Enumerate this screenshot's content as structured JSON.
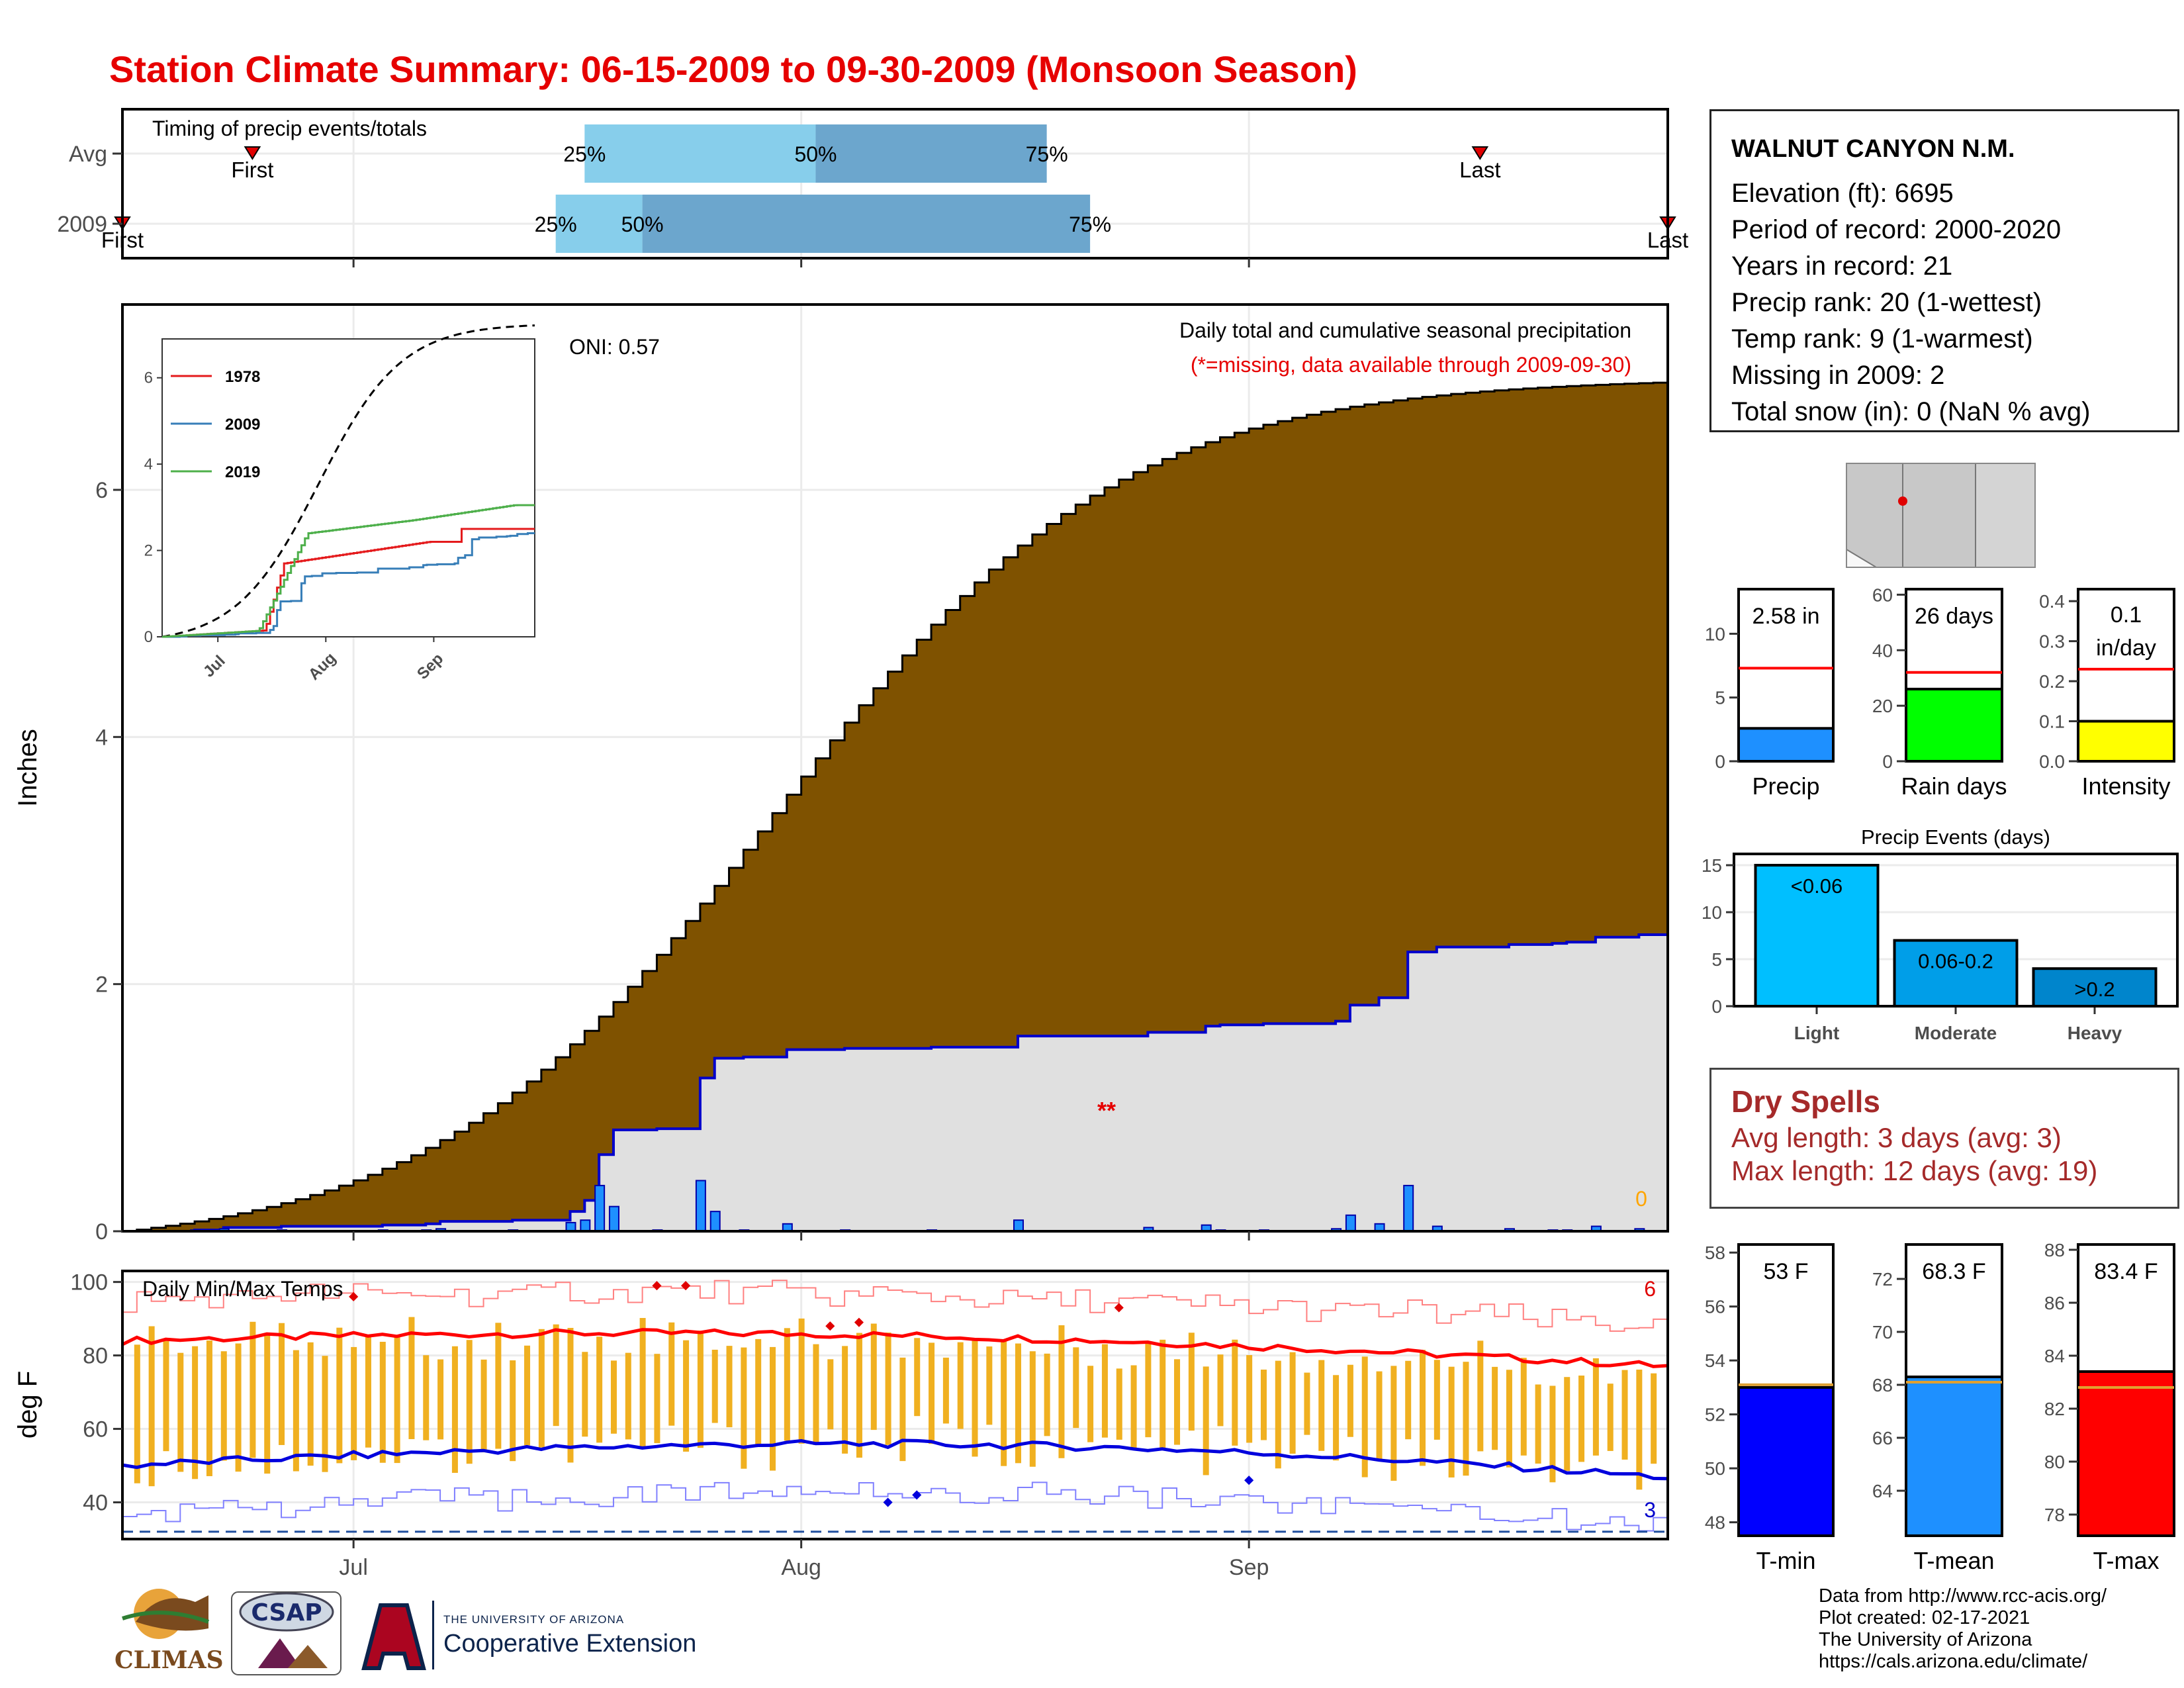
{
  "title": "Station Climate Summary: 06-15-2009 to 09-30-2009 (Monsoon Season)",
  "timing": {
    "heading": "Timing of precip events/totals",
    "rows": [
      "Avg",
      "2009"
    ],
    "first_label": "First",
    "last_label": "Last",
    "pct_labels": [
      "25%",
      "50%",
      "75%"
    ],
    "avg": {
      "first_day": 9,
      "last_day": 94,
      "p25": 32,
      "p50": 48,
      "p75": 64
    },
    "y2009": {
      "first_day": 0,
      "last_day": 107,
      "p25": 30,
      "p50": 36,
      "p75": 67
    }
  },
  "main_chart": {
    "ylabel": "Inches",
    "oni": "ONI: 0.57",
    "subtitle": "Daily total and cumulative seasonal precipitation",
    "note": "(*=missing, data available through 2009-09-30)",
    "missing_marker": "**",
    "snow_label": "0",
    "yticks": [
      0,
      2,
      4,
      6
    ],
    "ylim": [
      0,
      7.5
    ],
    "x_labels": [
      "Jul",
      "Aug",
      "Sep"
    ]
  },
  "inset": {
    "legend": [
      "1978",
      "2009",
      "2019"
    ],
    "legend_colors": [
      "#e41a1c",
      "#377eb8",
      "#4daf4a"
    ],
    "yticks": [
      0,
      2,
      4,
      6
    ],
    "x_labels": [
      "Jul",
      "Aug",
      "Sep"
    ]
  },
  "temp_chart": {
    "heading": "Daily Min/Max Temps",
    "ylabel": "deg F",
    "yticks": [
      40,
      60,
      80,
      100
    ],
    "ylim": [
      30,
      103
    ],
    "record_high_count": "6",
    "record_low_count": "3",
    "x_labels": [
      "Jul",
      "Aug",
      "Sep"
    ]
  },
  "station": {
    "name": "WALNUT CANYON N.M.",
    "lines": [
      "Elevation (ft): 6695",
      "Period of record: 2000-2020",
      "Years in record: 21",
      "Precip rank: 20 (1-wettest)",
      "Temp rank: 9 (1-warmest)",
      "Missing in 2009: 2",
      "Total snow (in): 0 (NaN % avg)"
    ]
  },
  "summary_bars": [
    {
      "label": "Precip",
      "value_text": "2.58 in",
      "value": 2.58,
      "avg": 7.3,
      "ymax": 13.5,
      "yticks": [
        0,
        5,
        10
      ],
      "color": "#1e90ff"
    },
    {
      "label": "Rain days",
      "value_text": "26 days",
      "value": 26,
      "avg": 32,
      "ymax": 62,
      "yticks": [
        0,
        20,
        40,
        60
      ],
      "color": "#00ff00"
    },
    {
      "label": "Intensity",
      "value_text_1": "0.1",
      "value_text_2": "in/day",
      "value": 0.1,
      "avg": 0.23,
      "ymax": 0.43,
      "yticks": [
        "0.0",
        "0.1",
        "0.2",
        "0.3",
        "0.4"
      ],
      "color": "#ffff00"
    }
  ],
  "events": {
    "title": "Precip Events (days)",
    "categories": [
      "Light",
      "Moderate",
      "Heavy"
    ],
    "labels": [
      "<0.06",
      "0.06-0.2",
      ">0.2"
    ],
    "values": [
      15,
      7,
      4
    ],
    "colors": [
      "#00bfff",
      "#009ee8",
      "#0085cc"
    ],
    "yticks": [
      0,
      5,
      10,
      15
    ]
  },
  "dry_spells": {
    "heading": "Dry Spells",
    "avg_line": "Avg length: 3 days (avg: 3)",
    "max_line": "Max length: 12 days (avg: 19)"
  },
  "temp_bars": [
    {
      "label": "T-min",
      "value_text": "53 F",
      "value": 53,
      "avg": 53.1,
      "ymin": 47.5,
      "ymax": 58.3,
      "yticks": [
        48,
        50,
        52,
        54,
        56,
        58
      ],
      "color": "#0000ff"
    },
    {
      "label": "T-mean",
      "value_text": "68.3 F",
      "value": 68.3,
      "avg": 68.1,
      "ymin": 62.3,
      "ymax": 73.3,
      "yticks": [
        64,
        66,
        68,
        70,
        72
      ],
      "color": "#1e90ff"
    },
    {
      "label": "T-max",
      "value_text": "83.4 F",
      "value": 83.4,
      "avg": 82.8,
      "ymin": 77.2,
      "ymax": 88.2,
      "yticks": [
        78,
        80,
        82,
        84,
        86,
        88
      ],
      "color": "#ff0000"
    }
  ],
  "credits": [
    "Data from http://www.rcc-acis.org/",
    "Plot created: 02-17-2021",
    "The University of Arizona",
    "https://cals.arizona.edu/climate/"
  ],
  "logos": {
    "climas": "CLIMAS",
    "csap": "CSAP",
    "ua_line1": "THE UNIVERSITY OF ARIZONA",
    "ua_line2": "Cooperative Extension"
  }
}
